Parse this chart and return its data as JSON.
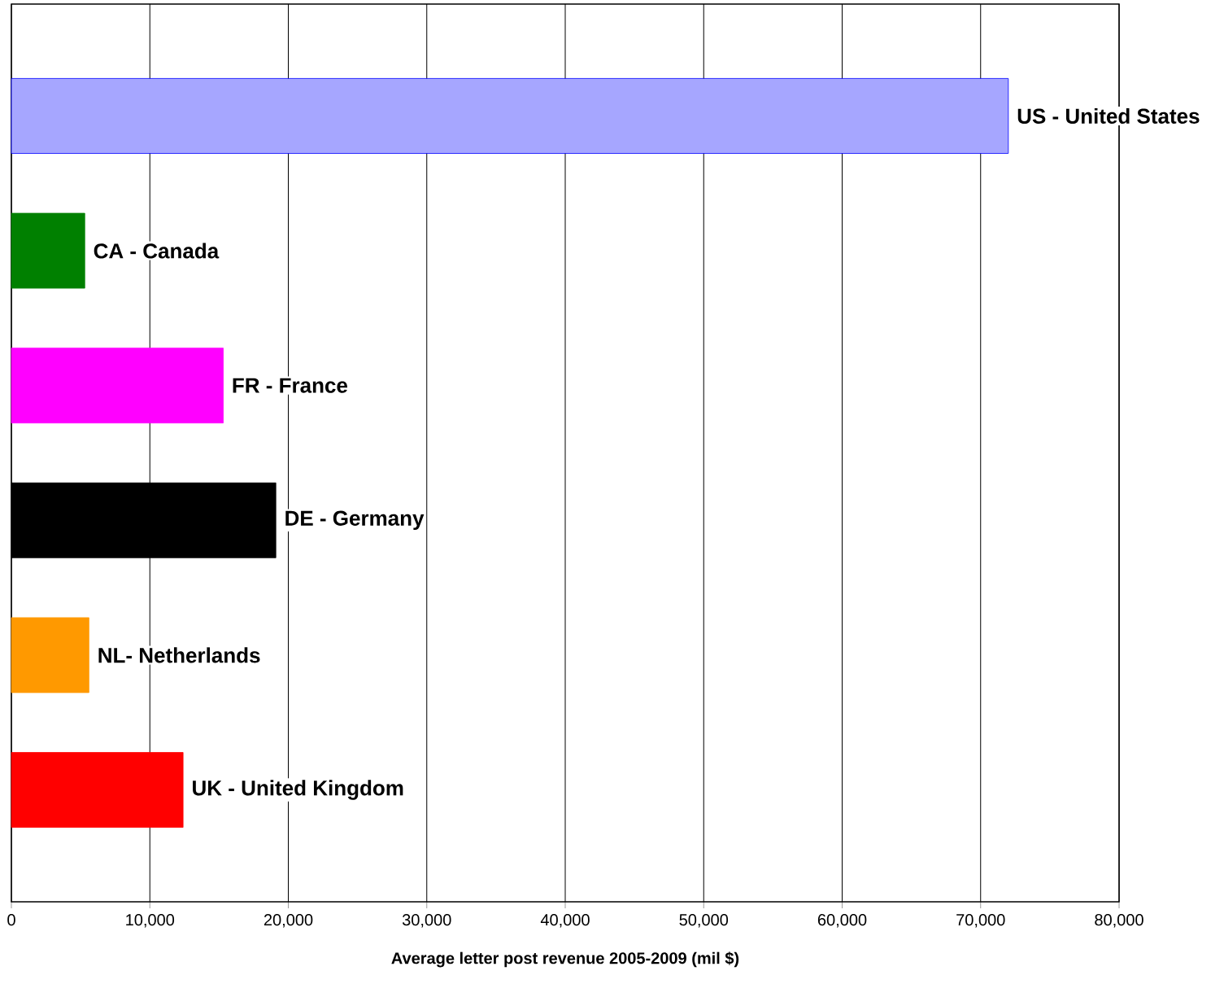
{
  "chart_data": {
    "type": "bar",
    "orientation": "horizontal",
    "xlabel": "Average letter post revenue 2005-2009 (mil $)",
    "categories": [
      "US - United States",
      "CA - Canada",
      "FR - France",
      "DE - Germany",
      "NL- Netherlands",
      "UK - United Kingdom"
    ],
    "values": [
      72000,
      5300,
      15300,
      19100,
      5600,
      12400
    ],
    "colors": [
      "#0000ff",
      "#008000",
      "#ff00ff",
      "#000000",
      "#ff9900",
      "#ff0000"
    ],
    "xlim": [
      0,
      80000
    ],
    "xticks": [
      0,
      {
        "value": 10000,
        "label": "10,000"
      },
      {
        "value": 20000,
        "label": "20,000"
      },
      {
        "value": 30000,
        "label": "30,000"
      },
      {
        "value": 40000,
        "label": "40,000"
      },
      {
        "value": 50000,
        "label": "50,000"
      },
      {
        "value": 60000,
        "label": "60,000"
      },
      {
        "value": 70000,
        "label": "70,000"
      },
      {
        "value": 80000,
        "label": "80,000"
      }
    ],
    "grid": "x",
    "tick_labels": "x"
  }
}
